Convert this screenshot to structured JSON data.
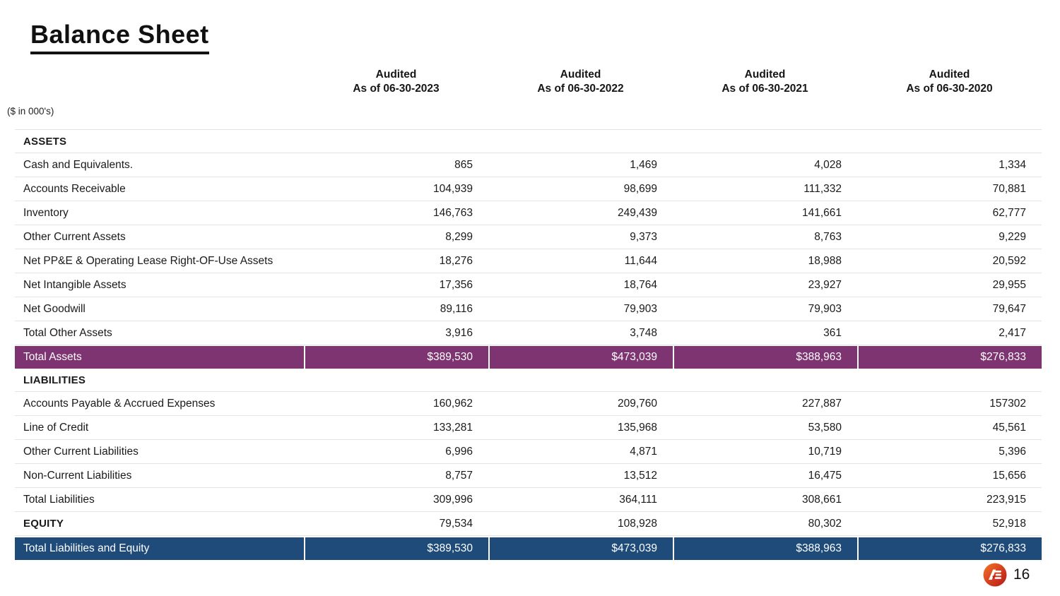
{
  "page": {
    "title": "Balance Sheet",
    "units_note": "($ in 000's)",
    "page_number": "16"
  },
  "icons": {
    "logo": "ae-company-logo"
  },
  "colors": {
    "total_assets_row": "#7d3471",
    "total_liabilities_equity_row": "#1e4b7a",
    "separator": "#e3e3e3",
    "logo_gradient_top": "#ef7a2a",
    "logo_gradient_bottom": "#c0211e"
  },
  "table": {
    "column_headers": [
      {
        "line1": "Audited",
        "line2": "As of 06-30-2023"
      },
      {
        "line1": "Audited",
        "line2": "As of 06-30-2022"
      },
      {
        "line1": "Audited",
        "line2": "As of 06-30-2021"
      },
      {
        "line1": "Audited",
        "line2": "As of 06-30-2020"
      }
    ],
    "rows": [
      {
        "label": "ASSETS",
        "type": "section",
        "values": [
          "",
          "",
          "",
          ""
        ]
      },
      {
        "label": "Cash and Equivalents.",
        "type": "item",
        "values": [
          "865",
          "1,469",
          "4,028",
          "1,334"
        ]
      },
      {
        "label": "Accounts Receivable",
        "type": "item",
        "values": [
          "104,939",
          "98,699",
          "111,332",
          "70,881"
        ]
      },
      {
        "label": "Inventory",
        "type": "item",
        "values": [
          "146,763",
          "249,439",
          "141,661",
          "62,777"
        ]
      },
      {
        "label": "Other Current Assets",
        "type": "item",
        "values": [
          "8,299",
          "9,373",
          "8,763",
          "9,229"
        ]
      },
      {
        "label": "Net PP&E & Operating Lease Right-OF-Use Assets",
        "type": "item",
        "values": [
          "18,276",
          "11,644",
          "18,988",
          "20,592"
        ]
      },
      {
        "label": "Net Intangible Assets",
        "type": "item",
        "values": [
          "17,356",
          "18,764",
          "23,927",
          "29,955"
        ]
      },
      {
        "label": "Net Goodwill",
        "type": "item",
        "values": [
          "89,116",
          "79,903",
          "79,903",
          "79,647"
        ]
      },
      {
        "label": "Total Other Assets",
        "type": "item",
        "values": [
          "3,916",
          "3,748",
          "361",
          "2,417"
        ]
      },
      {
        "label": "Total Assets",
        "type": "total-purple",
        "values": [
          "$389,530",
          "$473,039",
          "$388,963",
          "$276,833"
        ]
      },
      {
        "label": "LIABILITIES",
        "type": "section",
        "values": [
          "",
          "",
          "",
          ""
        ]
      },
      {
        "label": "Accounts Payable & Accrued Expenses",
        "type": "item",
        "values": [
          "160,962",
          "209,760",
          "227,887",
          "157302"
        ]
      },
      {
        "label": "Line of Credit",
        "type": "item",
        "values": [
          "133,281",
          "135,968",
          "53,580",
          "45,561"
        ]
      },
      {
        "label": "Other Current Liabilities",
        "type": "item",
        "values": [
          "6,996",
          "4,871",
          "10,719",
          "5,396"
        ]
      },
      {
        "label": "Non-Current Liabilities",
        "type": "item",
        "values": [
          "8,757",
          "13,512",
          "16,475",
          "15,656"
        ]
      },
      {
        "label": "Total Liabilities",
        "type": "item",
        "values": [
          "309,996",
          "364,111",
          "308,661",
          "223,915"
        ]
      },
      {
        "label": "EQUITY",
        "type": "section-values",
        "values": [
          "79,534",
          "108,928",
          "80,302",
          "52,918"
        ]
      },
      {
        "label": "Total Liabilities and Equity",
        "type": "total-blue",
        "values": [
          "$389,530",
          "$473,039",
          "$388,963",
          "$276,833"
        ]
      }
    ]
  }
}
